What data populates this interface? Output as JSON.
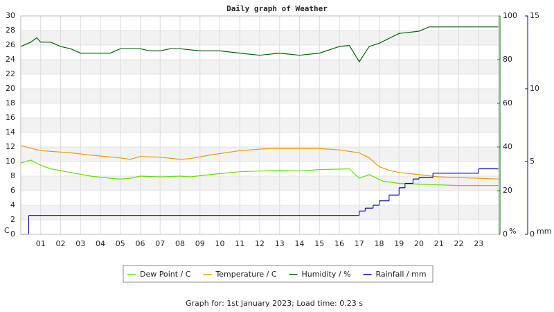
{
  "chart_data": {
    "type": "line",
    "title": "Daily graph of Weather",
    "footer": "Graph for: 1st January 2023; Load time: 0.23 s",
    "xlim": [
      0,
      24
    ],
    "xticks": [
      {
        "value": 1,
        "label": "01"
      },
      {
        "value": 2,
        "label": "02"
      },
      {
        "value": 3,
        "label": "03"
      },
      {
        "value": 4,
        "label": "04"
      },
      {
        "value": 5,
        "label": "05"
      },
      {
        "value": 6,
        "label": "06"
      },
      {
        "value": 7,
        "label": "07"
      },
      {
        "value": 8,
        "label": "08"
      },
      {
        "value": 9,
        "label": "09"
      },
      10,
      11,
      12,
      13,
      14,
      15,
      16,
      17,
      18,
      19,
      20,
      21,
      22,
      23
    ],
    "ylabel": "C",
    "ylabel_color": "#e89a00",
    "ylim": [
      0,
      30
    ],
    "yticks": [
      0,
      2,
      4,
      6,
      8,
      10,
      12,
      14,
      16,
      18,
      20,
      22,
      24,
      26,
      28,
      30
    ],
    "y2label": "%",
    "y2color": "#006400",
    "y2lim": [
      0,
      100
    ],
    "y2ticks": [
      0,
      20,
      40,
      60,
      80,
      100
    ],
    "y3label": "mm",
    "y3color": "#00008b",
    "y3lim": [
      0,
      15
    ],
    "y3ticks": [
      0,
      5,
      10,
      15
    ],
    "grid": true,
    "series": [
      {
        "name": "Dew Point / C",
        "color": "#66dd00",
        "axis": "y",
        "x": [
          0,
          0.5,
          1,
          1.5,
          2.5,
          3.5,
          4.5,
          5,
          5.5,
          6,
          7,
          8,
          8.5,
          9.5,
          11,
          12,
          13,
          14,
          15,
          16.5,
          17,
          17.5,
          18.2,
          19,
          20,
          21,
          22,
          24
        ],
        "values": [
          9.8,
          10.2,
          9.5,
          9.0,
          8.5,
          8.0,
          7.7,
          7.6,
          7.7,
          8.0,
          7.9,
          8.0,
          7.9,
          8.2,
          8.6,
          8.7,
          8.8,
          8.7,
          8.9,
          9.0,
          7.7,
          8.2,
          7.3,
          7.0,
          6.9,
          6.8,
          6.7,
          6.7
        ]
      },
      {
        "name": "Temperature / C",
        "color": "#e89a00",
        "axis": "y",
        "x": [
          0,
          1,
          2.5,
          3.5,
          5,
          5.5,
          6,
          7,
          8,
          8.5,
          9.5,
          11,
          12.5,
          15,
          16,
          17,
          17.5,
          18,
          18.5,
          19,
          20,
          21,
          22,
          24
        ],
        "values": [
          12.2,
          11.5,
          11.2,
          10.9,
          10.5,
          10.3,
          10.7,
          10.6,
          10.3,
          10.4,
          10.9,
          11.5,
          11.8,
          11.8,
          11.6,
          11.2,
          10.5,
          9.3,
          8.8,
          8.5,
          8.2,
          7.9,
          7.8,
          7.6
        ]
      },
      {
        "name": "Humidity / %",
        "color": "#006400",
        "axis": "y2",
        "x": [
          0,
          0.5,
          0.8,
          1,
          1.5,
          2,
          2.5,
          3,
          4,
          4.5,
          5,
          6,
          6.5,
          7,
          7.5,
          8,
          9,
          10,
          11,
          12,
          13,
          14,
          15,
          16,
          16.5,
          17,
          17.5,
          18,
          19,
          20,
          20.5,
          24
        ],
        "values": [
          86,
          88,
          90,
          88,
          88,
          86,
          85,
          83,
          83,
          83,
          85,
          85,
          84,
          84,
          85,
          85,
          84,
          84,
          83,
          82,
          83,
          82,
          83,
          86,
          86.5,
          79,
          86,
          87.5,
          92,
          93,
          95,
          95
        ]
      },
      {
        "name": "Rainfall / mm",
        "color": "#0000a0",
        "axis": "y3",
        "step": true,
        "x": [
          0,
          0.4,
          17,
          17.3,
          17.7,
          18,
          18.5,
          19,
          19.3,
          19.7,
          20,
          20.7,
          23,
          24
        ],
        "values": [
          0,
          1.3,
          1.6,
          1.8,
          2.0,
          2.3,
          2.7,
          3.2,
          3.5,
          3.8,
          3.9,
          4.2,
          4.5,
          4.5
        ]
      }
    ]
  }
}
